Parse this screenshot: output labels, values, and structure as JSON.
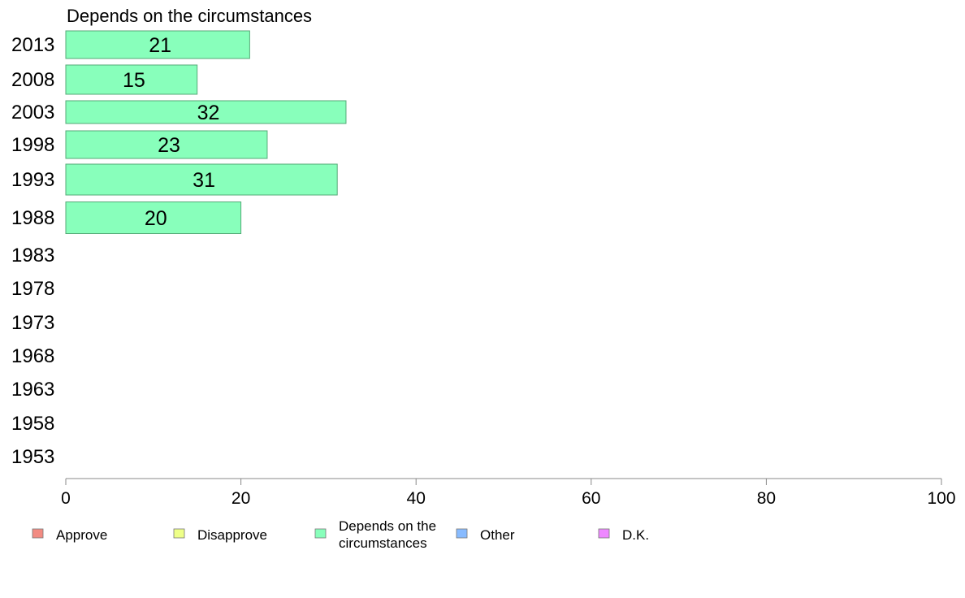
{
  "chart_data": {
    "type": "bar",
    "orientation": "horizontal",
    "title": "Depends on the circumstances",
    "categories": [
      "2013",
      "2008",
      "2003",
      "1998",
      "1993",
      "1988",
      "1983",
      "1978",
      "1973",
      "1968",
      "1963",
      "1958",
      "1953"
    ],
    "series": [
      {
        "name": "Depends on the circumstances",
        "values": [
          21,
          15,
          32,
          23,
          31,
          20,
          null,
          null,
          null,
          null,
          null,
          null,
          null
        ]
      }
    ],
    "xlim": [
      0,
      100
    ],
    "xticks": [
      0,
      20,
      40,
      60,
      80,
      100
    ],
    "grid": false,
    "legend_position": "bottom",
    "legend": [
      {
        "label": [
          "Approve"
        ],
        "color": "#f28b82"
      },
      {
        "label": [
          "Disapprove"
        ],
        "color": "#eeff88"
      },
      {
        "label": [
          "Depends on the",
          "circumstances"
        ],
        "color": "#88ffbb"
      },
      {
        "label": [
          "Other"
        ],
        "color": "#88bbff"
      },
      {
        "label": [
          "D.K."
        ],
        "color": "#ee88ff"
      }
    ],
    "bar_color": "#88ffbb",
    "bar_stroke": "#55aa77"
  }
}
